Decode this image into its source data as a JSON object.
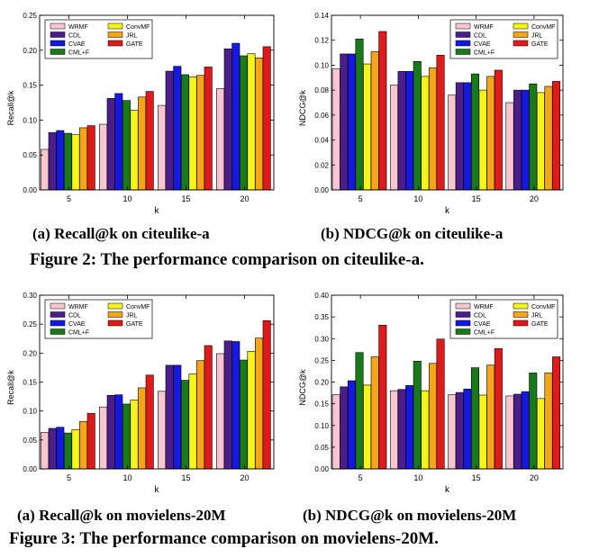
{
  "colors": {
    "WRMF": "#f7c6d0",
    "CDL": "#4b1e8c",
    "CVAE": "#1418e0",
    "CML+F": "#1a7a1a",
    "ConvMF": "#f5f51a",
    "JRL": "#f5a51a",
    "GATE": "#e01a1a"
  },
  "captions": {
    "fig2_a": "(a)  Recall@k on citeulike-a",
    "fig2_b": "(b)  NDCG@k on citeulike-a",
    "fig2": "Figure 2: The performance comparison on citeulike-a.",
    "fig3_a": "(a)  Recall@k on movielens-20M",
    "fig3_b": "(b)  NDCG@k on movielens-20M",
    "fig3": "Figure 3: The performance comparison on movielens-20M."
  },
  "chart_data": [
    {
      "type": "bar",
      "title": "Recall@k on citeulike-a",
      "xlabel": "k",
      "ylabel": "Recall@k",
      "categories": [
        "5",
        "10",
        "15",
        "20"
      ],
      "ylim": [
        0,
        0.25
      ],
      "yticks": [
        "0.00",
        "0.05",
        "0.10",
        "0.15",
        "0.20",
        "0.25"
      ],
      "legend": "top-left",
      "series": [
        {
          "name": "WRMF",
          "values": [
            0.058,
            0.094,
            0.121,
            0.145
          ]
        },
        {
          "name": "CDL",
          "values": [
            0.082,
            0.131,
            0.17,
            0.202
          ]
        },
        {
          "name": "CVAE",
          "values": [
            0.085,
            0.138,
            0.177,
            0.21
          ]
        },
        {
          "name": "CML+F",
          "values": [
            0.081,
            0.128,
            0.165,
            0.192
          ]
        },
        {
          "name": "ConvMF",
          "values": [
            0.079,
            0.114,
            0.162,
            0.195
          ]
        },
        {
          "name": "JRL",
          "values": [
            0.089,
            0.133,
            0.164,
            0.189
          ]
        },
        {
          "name": "GATE",
          "values": [
            0.092,
            0.141,
            0.176,
            0.205
          ]
        }
      ]
    },
    {
      "type": "bar",
      "title": "NDCG@k on citeulike-a",
      "xlabel": "k",
      "ylabel": "NDCG@k",
      "categories": [
        "5",
        "10",
        "15",
        "20"
      ],
      "ylim": [
        0,
        0.14
      ],
      "yticks": [
        "0.00",
        "0.02",
        "0.04",
        "0.06",
        "0.08",
        "0.10",
        "0.12",
        "0.14"
      ],
      "legend": "top-right",
      "series": [
        {
          "name": "WRMF",
          "values": [
            0.097,
            0.084,
            0.076,
            0.07
          ]
        },
        {
          "name": "CDL",
          "values": [
            0.109,
            0.095,
            0.086,
            0.08
          ]
        },
        {
          "name": "CVAE",
          "values": [
            0.109,
            0.095,
            0.086,
            0.08
          ]
        },
        {
          "name": "CML+F",
          "values": [
            0.121,
            0.103,
            0.093,
            0.085
          ]
        },
        {
          "name": "ConvMF",
          "values": [
            0.101,
            0.091,
            0.08,
            0.078
          ]
        },
        {
          "name": "JRL",
          "values": [
            0.111,
            0.098,
            0.091,
            0.083
          ]
        },
        {
          "name": "GATE",
          "values": [
            0.127,
            0.108,
            0.096,
            0.087
          ]
        }
      ]
    },
    {
      "type": "bar",
      "title": "Recall@k on movielens-20M",
      "xlabel": "k",
      "ylabel": "Recall@k",
      "categories": [
        "5",
        "10",
        "15",
        "20"
      ],
      "ylim": [
        0,
        0.3
      ],
      "yticks": [
        "0.00",
        "0.05",
        "0.10",
        "0.15",
        "0.20",
        "0.25",
        "0.30"
      ],
      "legend": "top-left",
      "series": [
        {
          "name": "WRMF",
          "values": [
            0.063,
            0.107,
            0.134,
            0.199
          ]
        },
        {
          "name": "CDL",
          "values": [
            0.07,
            0.127,
            0.179,
            0.221
          ]
        },
        {
          "name": "CVAE",
          "values": [
            0.072,
            0.128,
            0.179,
            0.22
          ]
        },
        {
          "name": "CML+F",
          "values": [
            0.062,
            0.112,
            0.153,
            0.188
          ]
        },
        {
          "name": "ConvMF",
          "values": [
            0.068,
            0.119,
            0.164,
            0.203
          ]
        },
        {
          "name": "JRL",
          "values": [
            0.082,
            0.14,
            0.187,
            0.226
          ]
        },
        {
          "name": "GATE",
          "values": [
            0.096,
            0.162,
            0.213,
            0.256
          ]
        }
      ]
    },
    {
      "type": "bar",
      "title": "NDCG@k on movielens-20M",
      "xlabel": "k",
      "ylabel": "NDCG@k",
      "categories": [
        "5",
        "10",
        "15",
        "20"
      ],
      "ylim": [
        0,
        0.4
      ],
      "yticks": [
        "0.00",
        "0.05",
        "0.10",
        "0.15",
        "0.20",
        "0.25",
        "0.30",
        "0.35",
        "0.40"
      ],
      "legend": "top-right",
      "series": [
        {
          "name": "WRMF",
          "values": [
            0.171,
            0.18,
            0.171,
            0.168
          ]
        },
        {
          "name": "CDL",
          "values": [
            0.189,
            0.183,
            0.176,
            0.172
          ]
        },
        {
          "name": "CVAE",
          "values": [
            0.203,
            0.192,
            0.184,
            0.178
          ]
        },
        {
          "name": "CML+F",
          "values": [
            0.268,
            0.248,
            0.233,
            0.221
          ]
        },
        {
          "name": "ConvMF",
          "values": [
            0.193,
            0.18,
            0.17,
            0.162
          ]
        },
        {
          "name": "JRL",
          "values": [
            0.258,
            0.243,
            0.239,
            0.221
          ]
        },
        {
          "name": "GATE",
          "values": [
            0.331,
            0.299,
            0.277,
            0.258
          ]
        }
      ]
    }
  ]
}
